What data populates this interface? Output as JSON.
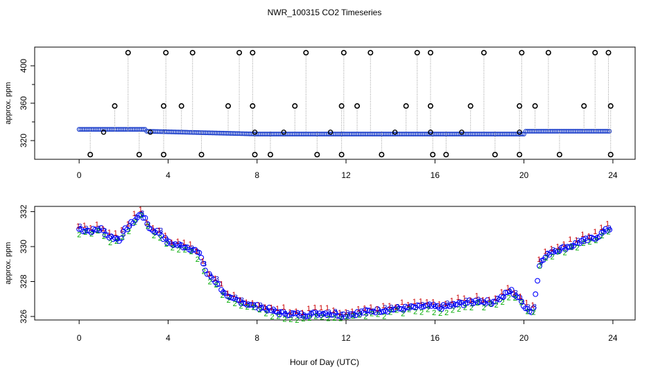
{
  "chart_data": [
    {
      "type": "scatter",
      "panel": "top",
      "title": "NWR_100315  CO2 Timeseries",
      "xlabel": "",
      "ylabel": "approx. ppm",
      "xlim": [
        -2,
        25
      ],
      "ylim": [
        300,
        420
      ],
      "x_ticks": [
        0,
        4,
        8,
        12,
        16,
        20,
        24
      ],
      "y_ticks": [
        320,
        360,
        400
      ],
      "y_tick_labels": [
        "320",
        "360",
        "400"
      ],
      "outliers_high": [
        2.2,
        3.9,
        5.1,
        7.2,
        7.8,
        10.2,
        11.9,
        13.1,
        15.2,
        15.8,
        18.2,
        19.9,
        21.1,
        23.2,
        23.8
      ],
      "outliers_mid": [
        1.6,
        3.8,
        4.6,
        6.7,
        7.8,
        9.7,
        11.8,
        12.5,
        14.7,
        15.8,
        17.6,
        19.8,
        20.5,
        22.7,
        23.9
      ],
      "outliers_low": [
        0.5,
        2.7,
        3.8,
        5.5,
        7.9,
        8.6,
        10.7,
        11.8,
        13.6,
        15.9,
        16.5,
        18.7,
        19.8,
        21.6,
        23.9
      ],
      "outliers_small": [
        1.1,
        3.2,
        7.9,
        9.2,
        11.3,
        14.2,
        15.8,
        17.2,
        19.8
      ],
      "values": {
        "high": 414,
        "mid": 357,
        "low": 305,
        "small": 329
      }
    },
    {
      "type": "scatter",
      "panel": "bottom",
      "title": "",
      "xlabel": "Hour of Day (UTC)",
      "ylabel": "approx. ppm",
      "xlim": [
        -2,
        25
      ],
      "ylim": [
        325.8,
        332.3
      ],
      "x_ticks": [
        0,
        4,
        8,
        12,
        16,
        20,
        24
      ],
      "y_ticks": [
        326,
        328,
        330,
        332
      ],
      "series_markers": [
        "1",
        "2",
        "3",
        "o"
      ],
      "series_colors": [
        "#cc0000",
        "#00aa00",
        "#0000cc",
        "#0000ff"
      ],
      "baseline_points": [
        [
          0,
          331.0
        ],
        [
          0.5,
          330.9
        ],
        [
          1.0,
          331.0
        ],
        [
          1.3,
          330.6
        ],
        [
          1.8,
          330.4
        ],
        [
          2.1,
          331.0
        ],
        [
          2.5,
          331.5
        ],
        [
          2.8,
          331.9
        ],
        [
          3.2,
          331.0
        ],
        [
          3.6,
          330.8
        ],
        [
          4.0,
          330.2
        ],
        [
          4.4,
          330.1
        ],
        [
          4.8,
          330.0
        ],
        [
          5.2,
          329.8
        ],
        [
          5.5,
          329.4
        ],
        [
          5.7,
          328.5
        ],
        [
          5.9,
          328.3
        ],
        [
          6.3,
          327.8
        ],
        [
          6.7,
          327.0
        ],
        [
          7.2,
          326.9
        ],
        [
          7.8,
          326.6
        ],
        [
          8.3,
          326.5
        ],
        [
          9.0,
          326.2
        ],
        [
          10.0,
          326.1
        ],
        [
          11.0,
          326.2
        ],
        [
          11.8,
          326.1
        ],
        [
          12.0,
          326.1
        ],
        [
          13.0,
          326.3
        ],
        [
          14.0,
          326.4
        ],
        [
          15.0,
          326.5
        ],
        [
          15.8,
          326.6
        ],
        [
          16.2,
          326.5
        ],
        [
          17.0,
          326.7
        ],
        [
          17.5,
          326.8
        ],
        [
          18.0,
          326.9
        ],
        [
          18.5,
          326.8
        ],
        [
          19.0,
          327.1
        ],
        [
          19.4,
          327.5
        ],
        [
          19.8,
          327.0
        ],
        [
          20.1,
          326.5
        ],
        [
          20.4,
          326.2
        ],
        [
          20.7,
          329.0
        ],
        [
          21.2,
          329.7
        ],
        [
          22.0,
          330.0
        ],
        [
          22.6,
          330.3
        ],
        [
          23.2,
          330.5
        ],
        [
          23.8,
          331.0
        ]
      ]
    }
  ]
}
